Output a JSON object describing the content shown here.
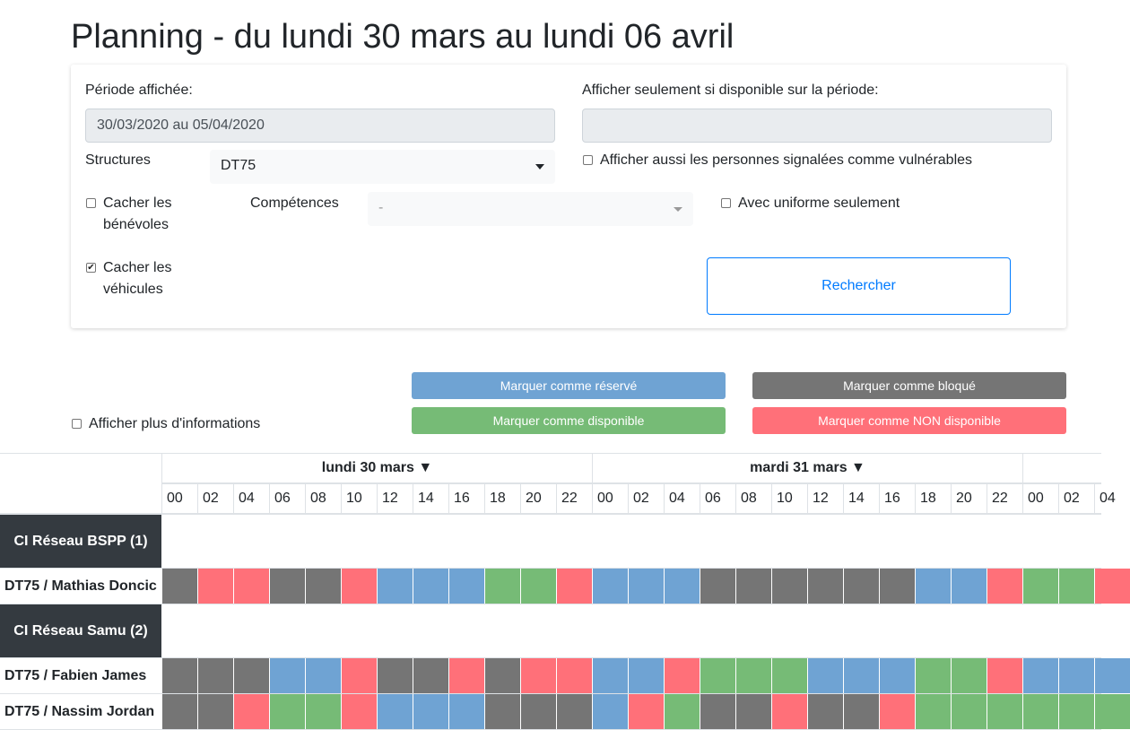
{
  "title": "Planning - du lundi 30 mars au lundi 06 avril",
  "filters": {
    "periode_label": "Période affichée:",
    "periode_value": "30/03/2020 au 05/04/2020",
    "dispo_label": "Afficher seulement si disponible sur la période:",
    "dispo_value": "",
    "structures_label": "Structures",
    "structures_value": "DT75",
    "vulnerables_label": "Afficher aussi les personnes signalées comme vulnérables",
    "cacher_benevoles_label_1": "Cacher les",
    "cacher_benevoles_label_2": "bénévoles",
    "competences_label": "Compétences",
    "competences_value": "-",
    "uniforme_label": "Avec uniforme seulement",
    "cacher_vehicules_label_1": "Cacher les",
    "cacher_vehicules_label_2": "véhicules",
    "cacher_vehicules_checked": true,
    "search_button": "Rechercher"
  },
  "actions": {
    "reserve": "Marquer comme réservé",
    "bloque": "Marquer comme bloqué",
    "disponible": "Marquer comme disponible",
    "non_disponible": "Marquer comme NON disponible",
    "plus_infos": "Afficher plus d'informations"
  },
  "colors": {
    "reserve": "#6fa3d3",
    "bloque": "#757575",
    "disponible": "#76bb76",
    "non_disponible": "#ff7079",
    "group_bg": "#343a40"
  },
  "planning": {
    "days": [
      "lundi 30 mars ▼",
      "mardi 31 mars ▼"
    ],
    "hours": [
      "00",
      "02",
      "04",
      "06",
      "08",
      "10",
      "12",
      "14",
      "16",
      "18",
      "20",
      "22",
      "00",
      "02",
      "04",
      "06",
      "08",
      "10",
      "12",
      "14",
      "16",
      "18",
      "20",
      "22",
      "00",
      "02",
      "04"
    ],
    "groups": [
      {
        "name": "CI Réseau BSPP (1)",
        "people": [
          {
            "name": "DT75 / Mathias Doncic",
            "slots": [
              "B",
              "N",
              "N",
              "B",
              "B",
              "N",
              "R",
              "R",
              "R",
              "D",
              "D",
              "N",
              "R",
              "R",
              "R",
              "B",
              "B",
              "B",
              "B",
              "B",
              "B",
              "R",
              "R",
              "N",
              "D",
              "D",
              "N"
            ]
          }
        ]
      },
      {
        "name": "CI Réseau Samu (2)",
        "people": [
          {
            "name": "DT75 / Fabien James",
            "slots": [
              "B",
              "B",
              "B",
              "R",
              "R",
              "N",
              "B",
              "B",
              "N",
              "B",
              "N",
              "N",
              "R",
              "R",
              "N",
              "D",
              "D",
              "D",
              "R",
              "R",
              "R",
              "D",
              "D",
              "N",
              "R",
              "R",
              "R"
            ]
          },
          {
            "name": "DT75 / Nassim Jordan",
            "slots": [
              "B",
              "B",
              "N",
              "D",
              "D",
              "N",
              "R",
              "R",
              "R",
              "B",
              "B",
              "B",
              "R",
              "N",
              "D",
              "B",
              "B",
              "N",
              "B",
              "B",
              "N",
              "D",
              "D",
              "D",
              "D",
              "D",
              "D"
            ]
          }
        ]
      }
    ]
  }
}
